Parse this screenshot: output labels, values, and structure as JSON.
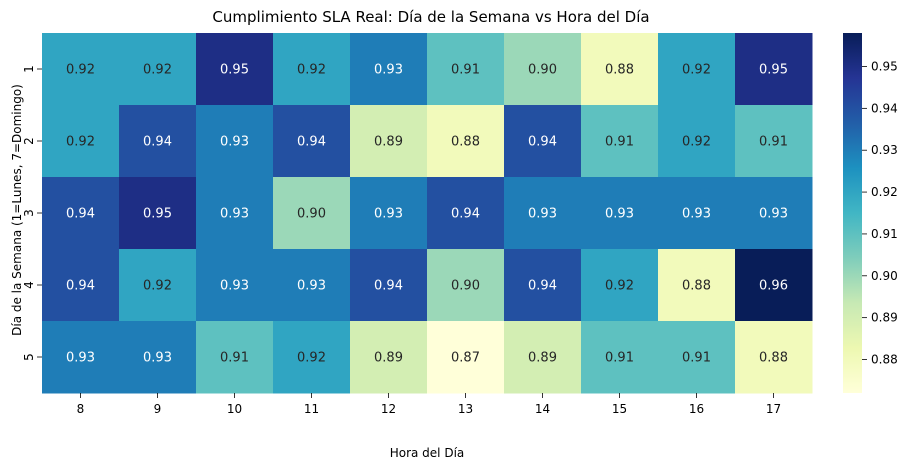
{
  "chart_data": {
    "type": "heatmap",
    "title": "Cumplimiento SLA Real: Día de la Semana vs Hora del Día",
    "xlabel": "Hora del Día",
    "ylabel": "Día de la Semana (1=Lunes, 7=Domingo)",
    "x_categories": [
      "8",
      "9",
      "10",
      "11",
      "12",
      "13",
      "14",
      "15",
      "16",
      "17"
    ],
    "y_categories": [
      "1",
      "2",
      "3",
      "4",
      "5"
    ],
    "values": [
      [
        0.92,
        0.92,
        0.95,
        0.92,
        0.93,
        0.91,
        0.9,
        0.88,
        0.92,
        0.95
      ],
      [
        0.92,
        0.94,
        0.93,
        0.94,
        0.89,
        0.88,
        0.94,
        0.91,
        0.92,
        0.91
      ],
      [
        0.94,
        0.95,
        0.93,
        0.9,
        0.93,
        0.94,
        0.93,
        0.93,
        0.93,
        0.93
      ],
      [
        0.94,
        0.92,
        0.93,
        0.93,
        0.94,
        0.9,
        0.94,
        0.92,
        0.88,
        0.96
      ],
      [
        0.93,
        0.93,
        0.91,
        0.92,
        0.89,
        0.87,
        0.89,
        0.91,
        0.91,
        0.88
      ]
    ],
    "value_format": "2 decimals",
    "colormap": "YlGnBu",
    "color_range": [
      0.872,
      0.958
    ],
    "colorbar_ticks": [
      "0.88",
      "0.89",
      "0.90",
      "0.91",
      "0.92",
      "0.93",
      "0.94",
      "0.95"
    ],
    "colors": {
      "low": "#ffffd9",
      "high": "#081d58",
      "text_dark": "#262626",
      "text_light": "#ffffff"
    }
  }
}
